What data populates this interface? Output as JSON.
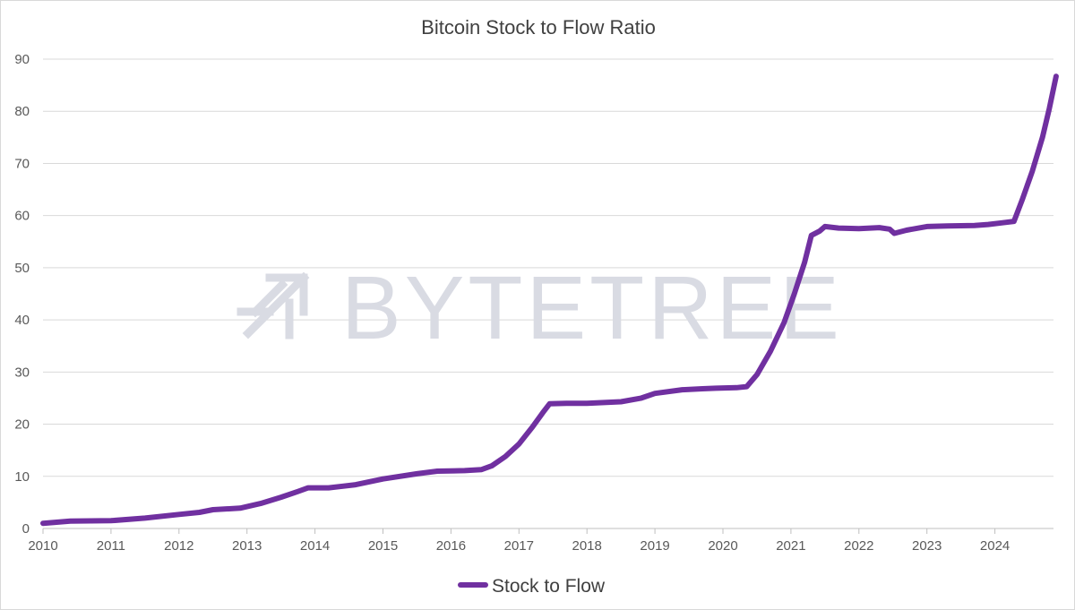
{
  "chart_data": {
    "type": "line",
    "title": "Bitcoin Stock to Flow Ratio",
    "xlabel": "",
    "ylabel": "",
    "xlim": [
      2010,
      2024.9
    ],
    "ylim": [
      0,
      90
    ],
    "x_ticks": [
      "2010",
      "2011",
      "2012",
      "2013",
      "2014",
      "2015",
      "2016",
      "2017",
      "2018",
      "2019",
      "2020",
      "2021",
      "2022",
      "2023",
      "2024"
    ],
    "y_ticks": [
      "0",
      "10",
      "20",
      "30",
      "40",
      "50",
      "60",
      "70",
      "80",
      "90"
    ],
    "grid": "horizontal",
    "legend_position": "bottom",
    "watermark": "BYTETREE",
    "series": [
      {
        "name": "Stock to Flow",
        "color": "#7030a0",
        "points": [
          [
            2010.0,
            1.0
          ],
          [
            2010.4,
            1.4
          ],
          [
            2011.0,
            1.5
          ],
          [
            2011.5,
            2.0
          ],
          [
            2012.0,
            2.7
          ],
          [
            2012.3,
            3.1
          ],
          [
            2012.5,
            3.6
          ],
          [
            2012.9,
            3.9
          ],
          [
            2013.2,
            4.8
          ],
          [
            2013.5,
            6.0
          ],
          [
            2013.75,
            7.1
          ],
          [
            2013.9,
            7.8
          ],
          [
            2014.2,
            7.8
          ],
          [
            2014.6,
            8.4
          ],
          [
            2015.0,
            9.5
          ],
          [
            2015.5,
            10.5
          ],
          [
            2015.8,
            11.0
          ],
          [
            2016.2,
            11.1
          ],
          [
            2016.45,
            11.3
          ],
          [
            2016.6,
            12.0
          ],
          [
            2016.8,
            13.8
          ],
          [
            2017.0,
            16.2
          ],
          [
            2017.2,
            19.5
          ],
          [
            2017.35,
            22.2
          ],
          [
            2017.45,
            23.9
          ],
          [
            2017.7,
            24.0
          ],
          [
            2018.0,
            24.0
          ],
          [
            2018.5,
            24.3
          ],
          [
            2018.8,
            25.0
          ],
          [
            2019.0,
            25.9
          ],
          [
            2019.4,
            26.6
          ],
          [
            2019.7,
            26.8
          ],
          [
            2019.9,
            26.9
          ],
          [
            2020.2,
            27.0
          ],
          [
            2020.35,
            27.2
          ],
          [
            2020.5,
            29.5
          ],
          [
            2020.7,
            34.0
          ],
          [
            2020.9,
            39.5
          ],
          [
            2021.05,
            45.0
          ],
          [
            2021.2,
            51.0
          ],
          [
            2021.3,
            56.2
          ],
          [
            2021.42,
            57.0
          ],
          [
            2021.5,
            57.9
          ],
          [
            2021.7,
            57.6
          ],
          [
            2022.0,
            57.5
          ],
          [
            2022.3,
            57.7
          ],
          [
            2022.45,
            57.4
          ],
          [
            2022.52,
            56.6
          ],
          [
            2022.7,
            57.2
          ],
          [
            2023.0,
            57.9
          ],
          [
            2023.3,
            58.0
          ],
          [
            2023.7,
            58.1
          ],
          [
            2023.9,
            58.3
          ],
          [
            2024.1,
            58.6
          ],
          [
            2024.28,
            58.9
          ],
          [
            2024.4,
            63.0
          ],
          [
            2024.55,
            68.5
          ],
          [
            2024.7,
            75.0
          ],
          [
            2024.8,
            80.5
          ],
          [
            2024.9,
            86.7
          ]
        ]
      }
    ]
  }
}
